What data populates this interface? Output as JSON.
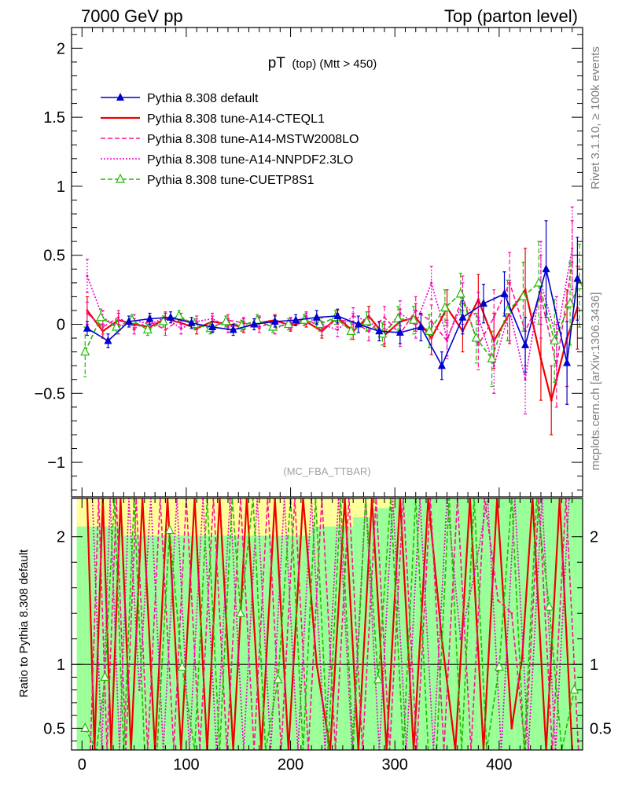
{
  "header": {
    "left": "7000 GeV pp",
    "right": "Top (parton level)"
  },
  "side_labels": {
    "rivet": "Rivet 3.1.10, ≥ 100k events",
    "mcplots": "mcplots.cern.ch [arXiv:1306.3436]"
  },
  "chart_data": [
    {
      "type": "line",
      "title_main": "pT",
      "title_sub": "(top) (Mtt > 450)",
      "watermark": "(MC_FBA_TTBAR)",
      "xlim": [
        -10,
        480
      ],
      "ylim": [
        -1.25,
        2.15
      ],
      "x_ticks": [
        0,
        100,
        200,
        300,
        400
      ],
      "y_ticks": [
        -1,
        -0.5,
        0,
        0.5,
        1,
        1.5,
        2
      ],
      "y_tick_labels": [
        "−1",
        "−0.5",
        "0",
        "0.5",
        "1",
        "1.5",
        "2"
      ],
      "legend_position": "top-left",
      "series": [
        {
          "name": "Pythia 8.308 default",
          "color": "#0000cc",
          "style": "solid",
          "marker": "triangle-filled",
          "x": [
            5,
            25,
            45,
            65,
            85,
            105,
            125,
            145,
            165,
            185,
            205,
            225,
            245,
            265,
            285,
            305,
            325,
            345,
            365,
            385,
            405,
            425,
            445,
            465,
            475
          ],
          "y": [
            -0.03,
            -0.12,
            0.02,
            0.04,
            0.05,
            0.01,
            -0.02,
            -0.04,
            0.0,
            0.02,
            0.03,
            0.05,
            0.06,
            0.0,
            -0.05,
            -0.06,
            -0.02,
            -0.3,
            0.05,
            0.15,
            0.22,
            -0.15,
            0.4,
            -0.28,
            0.33
          ],
          "err": [
            0.05,
            0.05,
            0.04,
            0.04,
            0.04,
            0.04,
            0.04,
            0.04,
            0.04,
            0.04,
            0.04,
            0.05,
            0.05,
            0.06,
            0.07,
            0.08,
            0.1,
            0.1,
            0.12,
            0.14,
            0.16,
            0.2,
            0.35,
            0.3,
            0.3
          ]
        },
        {
          "name": "Pythia 8.308 tune-A14-CTEQL1",
          "color": "#ee0000",
          "style": "solid",
          "marker": "none",
          "x": [
            5,
            20,
            35,
            50,
            65,
            80,
            95,
            110,
            125,
            140,
            155,
            170,
            185,
            200,
            215,
            230,
            245,
            260,
            275,
            290,
            305,
            320,
            335,
            350,
            365,
            380,
            395,
            410,
            425,
            440,
            450,
            465,
            475
          ],
          "y": [
            0.1,
            -0.05,
            0.03,
            0.0,
            -0.02,
            0.04,
            0.01,
            -0.03,
            0.02,
            0.0,
            -0.02,
            0.01,
            0.03,
            -0.01,
            0.02,
            -0.05,
            0.05,
            -0.05,
            0.06,
            -0.08,
            0.02,
            0.05,
            -0.1,
            0.12,
            -0.05,
            0.18,
            -0.12,
            0.08,
            0.25,
            -0.25,
            -0.55,
            -0.1,
            0.12
          ],
          "err": [
            0.1,
            0.05,
            0.05,
            0.04,
            0.04,
            0.04,
            0.04,
            0.04,
            0.04,
            0.04,
            0.04,
            0.04,
            0.04,
            0.04,
            0.04,
            0.05,
            0.05,
            0.06,
            0.07,
            0.08,
            0.09,
            0.1,
            0.12,
            0.13,
            0.15,
            0.18,
            0.2,
            0.22,
            0.3,
            0.3,
            0.25,
            0.35,
            0.3
          ]
        },
        {
          "name": "Pythia 8.308 tune-A14-MSTW2008LO",
          "color": "#ff1493",
          "style": "dashed",
          "marker": "none",
          "x": [
            5,
            20,
            35,
            50,
            65,
            80,
            95,
            110,
            125,
            140,
            155,
            170,
            185,
            200,
            215,
            230,
            245,
            260,
            275,
            290,
            305,
            320,
            335,
            350,
            365,
            380,
            395,
            410,
            425,
            440,
            455,
            470
          ],
          "y": [
            0.08,
            -0.02,
            0.05,
            -0.03,
            0.02,
            -0.04,
            0.04,
            0.0,
            -0.02,
            0.03,
            0.01,
            -0.02,
            0.02,
            0.0,
            0.04,
            -0.03,
            0.03,
            0.02,
            -0.05,
            0.05,
            -0.07,
            0.1,
            0.02,
            -0.12,
            0.2,
            -0.15,
            0.05,
            0.3,
            -0.05,
            0.2,
            -0.3,
            0.45
          ],
          "err": [
            0.08,
            0.05,
            0.05,
            0.04,
            0.04,
            0.04,
            0.04,
            0.04,
            0.04,
            0.04,
            0.04,
            0.04,
            0.04,
            0.04,
            0.04,
            0.05,
            0.05,
            0.06,
            0.07,
            0.08,
            0.09,
            0.1,
            0.12,
            0.13,
            0.15,
            0.18,
            0.2,
            0.22,
            0.25,
            0.3,
            0.3,
            0.3
          ]
        },
        {
          "name": "Pythia 8.308 tune-A14-NNPDF2.3LO",
          "color": "#ee00cc",
          "style": "dotted",
          "marker": "none",
          "x": [
            5,
            20,
            35,
            50,
            65,
            80,
            95,
            110,
            125,
            140,
            155,
            170,
            185,
            200,
            215,
            230,
            245,
            260,
            275,
            290,
            305,
            320,
            335,
            350,
            365,
            380,
            395,
            410,
            425,
            440,
            455,
            470
          ],
          "y": [
            0.35,
            0.05,
            -0.02,
            0.03,
            0.0,
            0.05,
            -0.03,
            0.02,
            0.04,
            -0.02,
            0.0,
            0.02,
            -0.03,
            0.01,
            0.05,
            0.0,
            -0.04,
            0.06,
            0.02,
            -0.06,
            0.08,
            0.0,
            0.3,
            -0.1,
            0.15,
            0.05,
            -0.3,
            0.1,
            -0.4,
            0.3,
            -0.1,
            0.55
          ],
          "err": [
            0.12,
            0.05,
            0.05,
            0.04,
            0.04,
            0.04,
            0.04,
            0.04,
            0.04,
            0.04,
            0.04,
            0.04,
            0.04,
            0.04,
            0.04,
            0.05,
            0.05,
            0.06,
            0.07,
            0.08,
            0.09,
            0.1,
            0.12,
            0.13,
            0.15,
            0.18,
            0.2,
            0.22,
            0.25,
            0.3,
            0.3,
            0.3
          ]
        },
        {
          "name": "Pythia 8.308 tune-CUETP8S1",
          "color": "#22bb00",
          "style": "dashed",
          "marker": "triangle-open",
          "x": [
            3,
            18,
            33,
            48,
            63,
            78,
            93,
            108,
            123,
            138,
            153,
            168,
            183,
            198,
            213,
            228,
            243,
            258,
            273,
            288,
            303,
            318,
            333,
            348,
            363,
            378,
            393,
            408,
            423,
            438,
            453,
            468,
            477
          ],
          "y": [
            -0.2,
            0.05,
            -0.02,
            0.03,
            -0.04,
            0.02,
            0.06,
            0.0,
            -0.03,
            0.02,
            -0.01,
            0.03,
            -0.02,
            0.0,
            0.03,
            0.0,
            0.05,
            -0.05,
            0.02,
            -0.07,
            0.04,
            0.03,
            -0.05,
            0.12,
            0.22,
            -0.1,
            -0.25,
            0.1,
            0.2,
            0.3,
            -0.12,
            0.15,
            0.28
          ],
          "err": [
            0.18,
            0.06,
            0.05,
            0.04,
            0.04,
            0.04,
            0.04,
            0.04,
            0.04,
            0.04,
            0.04,
            0.04,
            0.04,
            0.04,
            0.04,
            0.05,
            0.05,
            0.06,
            0.07,
            0.08,
            0.09,
            0.1,
            0.12,
            0.13,
            0.15,
            0.18,
            0.2,
            0.22,
            0.25,
            0.3,
            0.3,
            0.3,
            0.3
          ]
        }
      ]
    },
    {
      "type": "line",
      "ylabel": "Ratio to Pythia 8.308 default",
      "xlim": [
        -10,
        480
      ],
      "ylim": [
        0.33,
        2.3
      ],
      "x_ticks": [
        0,
        100,
        200,
        300,
        400
      ],
      "y_ticks": [
        0.5,
        1,
        2
      ],
      "y_tick_labels": [
        "0.5",
        "1",
        "2"
      ],
      "reference_line": 1,
      "band_colors": {
        "inner": "#99ff99",
        "outer": "#ffff99"
      },
      "series_values": {
        "Pythia 8.308 tune-A14-CTEQL1": {
          "x": [
            5,
            12,
            20,
            28,
            37,
            47,
            58,
            70,
            82,
            95,
            108,
            120,
            132,
            145,
            158,
            172,
            185,
            198,
            212,
            225,
            238,
            252,
            265,
            278,
            292,
            305,
            318,
            332,
            345,
            358,
            372,
            385,
            398,
            412,
            422,
            432,
            445,
            458,
            470
          ],
          "y": [
            2.3,
            0.33,
            2.3,
            0.33,
            2.3,
            0.33,
            2.3,
            0.33,
            2.3,
            0.33,
            2.3,
            0.33,
            2.3,
            0.33,
            2.3,
            0.33,
            2.3,
            0.33,
            2.3,
            1.0,
            0.33,
            2.3,
            0.33,
            2.3,
            0.33,
            2.3,
            0.33,
            2.3,
            1.2,
            0.33,
            2.3,
            0.33,
            2.3,
            0.5,
            1.05,
            2.3,
            0.33,
            2.3,
            0.33
          ]
        },
        "Pythia 8.308 tune-A14-MSTW2008LO": {
          "x": [
            8,
            16,
            24,
            33,
            42,
            52,
            63,
            75,
            88,
            100,
            113,
            126,
            139,
            152,
            165,
            178,
            191,
            204,
            217,
            230,
            243,
            256,
            269,
            282,
            295,
            308,
            321,
            334,
            347,
            360,
            373,
            386,
            399,
            412,
            425,
            438,
            451,
            464,
            476
          ],
          "y": [
            0.33,
            2.3,
            0.33,
            2.3,
            0.33,
            2.3,
            0.33,
            2.3,
            0.33,
            2.3,
            0.33,
            2.3,
            0.33,
            2.3,
            0.33,
            2.3,
            0.33,
            2.3,
            0.33,
            2.3,
            0.33,
            2.3,
            0.33,
            2.3,
            0.33,
            2.3,
            0.33,
            2.3,
            0.33,
            2.3,
            0.33,
            2.3,
            1.5,
            1.4,
            0.33,
            2.3,
            0.33,
            2.3,
            0.33
          ]
        },
        "Pythia 8.308 tune-A14-NNPDF2.3LO": {
          "x": [
            10,
            19,
            27,
            36,
            45,
            55,
            66,
            78,
            91,
            103,
            116,
            129,
            142,
            155,
            168,
            181,
            194,
            207,
            220,
            233,
            246,
            259,
            272,
            285,
            298,
            311,
            324,
            337,
            350,
            363,
            376,
            389,
            402,
            415,
            428,
            441,
            454,
            467
          ],
          "y": [
            2.3,
            0.33,
            2.3,
            0.33,
            2.3,
            0.8,
            2.3,
            0.33,
            2.3,
            0.33,
            2.3,
            0.33,
            2.3,
            0.33,
            2.3,
            0.33,
            2.3,
            0.33,
            2.3,
            0.33,
            2.3,
            0.33,
            2.3,
            0.33,
            2.3,
            0.33,
            2.3,
            0.33,
            2.3,
            1.2,
            1.7,
            2.3,
            0.33,
            2.3,
            0.33,
            2.3,
            0.33,
            2.3
          ]
        },
        "Pythia 8.308 tune-CUETP8S1": {
          "x": [
            3,
            14,
            22,
            31,
            40,
            50,
            60,
            72,
            84,
            96,
            108,
            120,
            132,
            144,
            152,
            164,
            176,
            188,
            200,
            212,
            224,
            236,
            248,
            260,
            272,
            284,
            296,
            308,
            320,
            332,
            340,
            352,
            364,
            376,
            388,
            400,
            412,
            424,
            436,
            448,
            460,
            472
          ],
          "y": [
            0.5,
            0.33,
            0.9,
            2.3,
            0.33,
            2.3,
            0.33,
            0.33,
            2.05,
            0.98,
            0.33,
            2.3,
            0.33,
            2.3,
            1.4,
            2.3,
            0.33,
            0.88,
            2.3,
            0.33,
            2.3,
            0.33,
            2.3,
            0.33,
            2.3,
            0.88,
            2.3,
            0.33,
            2.3,
            0.33,
            0.33,
            2.3,
            0.33,
            2.3,
            0.33,
            0.98,
            2.3,
            0.33,
            2.3,
            1.45,
            0.33,
            0.8
          ]
        }
      }
    }
  ]
}
